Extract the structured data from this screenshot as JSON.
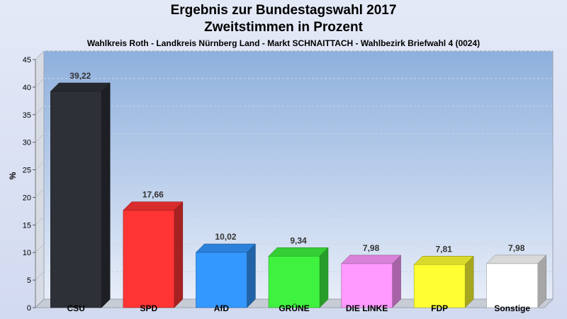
{
  "chart_data": {
    "type": "bar",
    "title": "Ergebnis zur Bundestagswahl 2017",
    "title_line2": "Zweitstimmen in Prozent",
    "subtitle": "Wahlkreis Roth - Landkreis Nürnberg Land - Markt SCHNAITTACH - Wahlbezirk Briefwahl 4 (0024)",
    "ylabel": "%",
    "xlabel": "",
    "ylim": [
      0,
      45
    ],
    "yticks": [
      0,
      5,
      10,
      15,
      20,
      25,
      30,
      35,
      40,
      45
    ],
    "grid": true,
    "categories": [
      "CSU",
      "SPD",
      "AfD",
      "GRÜNE",
      "DIE LINKE",
      "FDP",
      "Sonstige"
    ],
    "values": [
      39.22,
      17.66,
      10.02,
      9.34,
      7.98,
      7.81,
      7.98
    ],
    "value_labels": [
      "39,22",
      "17,66",
      "10,02",
      "9,34",
      "7,98",
      "7,81",
      "7,98"
    ],
    "colors": [
      "#2d3037",
      "#ff3434",
      "#3398ff",
      "#3ff23f",
      "#ff99ff",
      "#ffff33",
      "#ffffff"
    ]
  }
}
